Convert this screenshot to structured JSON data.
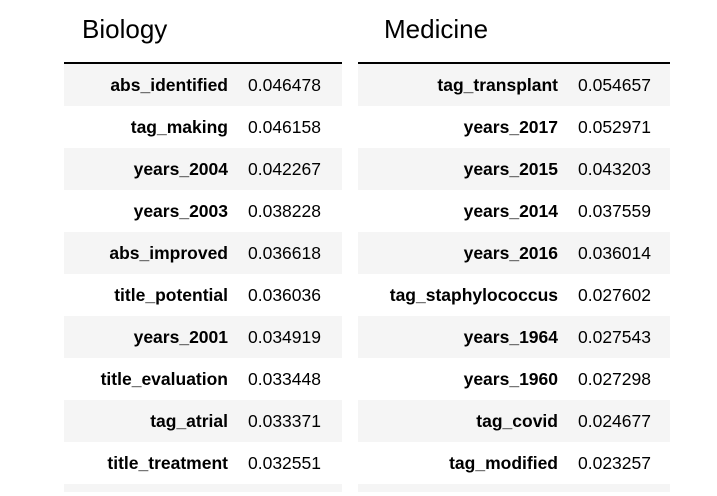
{
  "biology": {
    "title": "Biology",
    "rows": [
      {
        "feature": "abs_identified",
        "value": "0.046478"
      },
      {
        "feature": "tag_making",
        "value": "0.046158"
      },
      {
        "feature": "years_2004",
        "value": "0.042267"
      },
      {
        "feature": "years_2003",
        "value": "0.038228"
      },
      {
        "feature": "abs_improved",
        "value": "0.036618"
      },
      {
        "feature": "title_potential",
        "value": "0.036036"
      },
      {
        "feature": "years_2001",
        "value": "0.034919"
      },
      {
        "feature": "title_evaluation",
        "value": "0.033448"
      },
      {
        "feature": "tag_atrial",
        "value": "0.033371"
      },
      {
        "feature": "title_treatment",
        "value": "0.032551"
      }
    ]
  },
  "medicine": {
    "title": "Medicine",
    "rows": [
      {
        "feature": "tag_transplant",
        "value": "0.054657"
      },
      {
        "feature": "years_2017",
        "value": "0.052971"
      },
      {
        "feature": "years_2015",
        "value": "0.043203"
      },
      {
        "feature": "years_2014",
        "value": "0.037559"
      },
      {
        "feature": "years_2016",
        "value": "0.036014"
      },
      {
        "feature": "tag_staphylococcus",
        "value": "0.027602"
      },
      {
        "feature": "years_1964",
        "value": "0.027543"
      },
      {
        "feature": "years_1960",
        "value": "0.027298"
      },
      {
        "feature": "tag_covid",
        "value": "0.024677"
      },
      {
        "feature": "tag_modified",
        "value": "0.023257"
      }
    ]
  }
}
